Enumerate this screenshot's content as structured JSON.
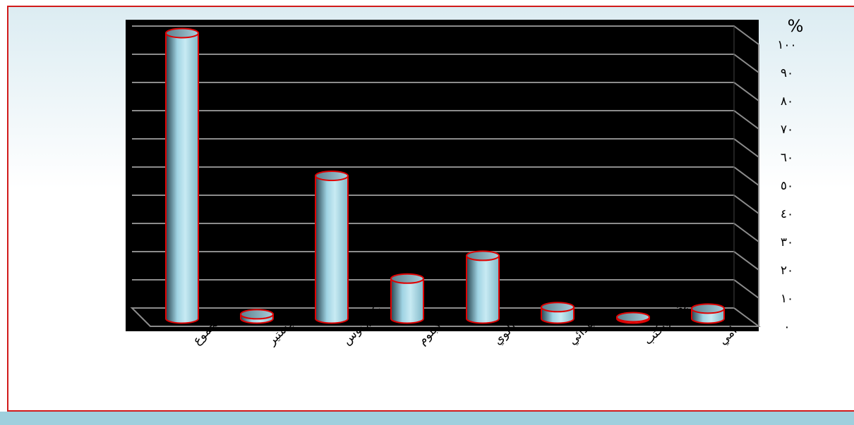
{
  "chart_data": {
    "type": "bar",
    "title": "",
    "unit_label": "%",
    "categories": [
      "المجموع",
      "ماجستير",
      "بكلوريوس",
      "دبلوم",
      "ثانوي",
      "ابتدائي",
      "يقرأ ويكتب",
      "امي"
    ],
    "values": [
      100,
      1.5,
      50,
      14,
      22,
      4,
      0.5,
      3.5
    ],
    "ylim": [
      0,
      100
    ],
    "y_ticks": [
      "٠",
      "١٠",
      "٢٠",
      "٣٠",
      "٤٠",
      "٥٠",
      "٦٠",
      "٧٠",
      "٨٠",
      "٩٠",
      "١٠٠"
    ],
    "y_axis_side": "right",
    "grid": true,
    "style": "3d-cylinder",
    "colors": {
      "plot_background": "#000000",
      "bar_fill": "#9fd3e3",
      "bar_outline": "#e00000",
      "grid_line": "#8c8c8c",
      "frame_border": "#d11a1a",
      "bottom_band": "#9fcfdd"
    }
  }
}
